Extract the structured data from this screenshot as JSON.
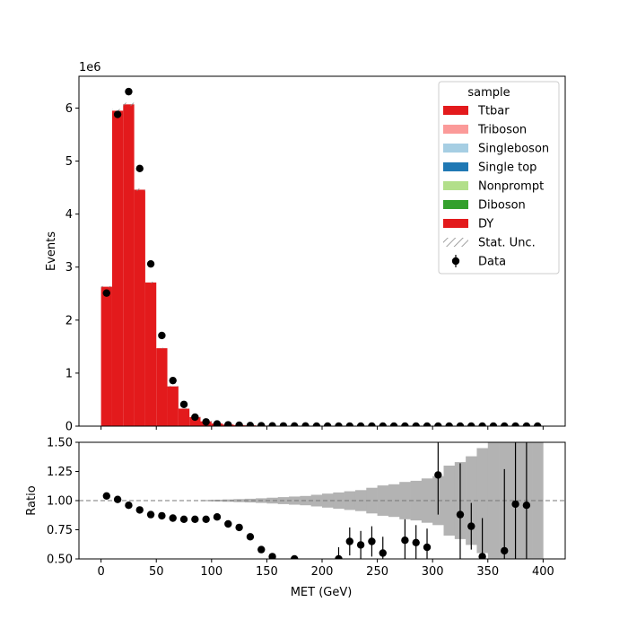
{
  "chart_data": {
    "type": "bar",
    "stacked": true,
    "xlabel": "MET (GeV)",
    "ylabel_top": "Events",
    "ylabel_bottom": "Ratio",
    "offset_label": "1e6",
    "top_ylim": [
      0,
      6.6
    ],
    "top_yticks": [
      "0",
      "1",
      "2",
      "3",
      "4",
      "5",
      "6"
    ],
    "bottom_ylim": [
      0.5,
      1.5
    ],
    "bottom_yticks": [
      "0.50",
      "0.75",
      "1.00",
      "1.25",
      "1.50"
    ],
    "xlim": [
      -20,
      420
    ],
    "xticks": [
      "0",
      "50",
      "100",
      "150",
      "200",
      "250",
      "300",
      "350",
      "400"
    ],
    "legend": {
      "title": "sample",
      "placement": "top-right",
      "entries": [
        {
          "label": "Ttbar",
          "color": "#e31a1c",
          "kind": "patch"
        },
        {
          "label": "Triboson",
          "color": "#fb9a99",
          "kind": "patch"
        },
        {
          "label": "Singleboson",
          "color": "#a6cee3",
          "kind": "patch"
        },
        {
          "label": "Single top",
          "color": "#1f78b4",
          "kind": "patch"
        },
        {
          "label": "Nonprompt",
          "color": "#b2df8a",
          "kind": "patch"
        },
        {
          "label": "Diboson",
          "color": "#33a02c",
          "kind": "patch"
        },
        {
          "label": "DY",
          "color": "#e31a1c",
          "kind": "patch"
        },
        {
          "label": "Stat. Unc.",
          "color": "#888888",
          "kind": "hatch"
        },
        {
          "label": "Data",
          "color": "#000000",
          "kind": "errorbar"
        }
      ]
    },
    "bin_edges": [
      0,
      10,
      20,
      30,
      40,
      50,
      60,
      70,
      80,
      90,
      100,
      110,
      120,
      130,
      140,
      150,
      160,
      170,
      180,
      190,
      200,
      210,
      220,
      230,
      240,
      250,
      260,
      270,
      280,
      290,
      300,
      310,
      320,
      330,
      340,
      350,
      360,
      370,
      380,
      390,
      400
    ],
    "series": [
      {
        "name": "DY",
        "color": "#e31a1c",
        "values": [
          2.63,
          5.95,
          6.07,
          4.46,
          2.71,
          1.47,
          0.75,
          0.33,
          0.17,
          0.09,
          0.05,
          0.03,
          0.02,
          0.015,
          0.01,
          0.008,
          0.006,
          0.004,
          0.003,
          0.002,
          0.002,
          0.0015,
          0.001,
          0.001,
          0.0008,
          0.0006,
          0.0005,
          0.0004,
          0.0003,
          0.0003,
          0.0002,
          0.0002,
          0.0001,
          0.0001,
          0.0001,
          0.0001,
          0.0001,
          5e-05,
          5e-05,
          5e-05
        ]
      }
    ],
    "data_points": {
      "name": "Data",
      "x": [
        5,
        15,
        25,
        35,
        45,
        55,
        65,
        75,
        85,
        95,
        105,
        115,
        125,
        135,
        145,
        155,
        165,
        175,
        185,
        195,
        205,
        215,
        225,
        235,
        245,
        255,
        265,
        275,
        285,
        295,
        305,
        315,
        325,
        335,
        345,
        355,
        365,
        375,
        385,
        395
      ],
      "y": [
        2.51,
        5.88,
        6.31,
        4.86,
        3.06,
        1.71,
        0.86,
        0.41,
        0.17,
        0.08,
        0.04,
        0.025,
        0.018,
        0.012,
        0.008,
        0.005,
        0.004,
        0.003,
        0.002,
        0.0015,
        0.001,
        0.0008,
        0.0006,
        0.0005,
        0.0004,
        0.0003,
        0.0002,
        0.0002,
        0.0001,
        0.0001,
        0.0001,
        0.0001,
        0.0001,
        0.0001,
        5e-05,
        5e-05,
        5e-05,
        5e-05,
        5e-05,
        5e-05
      ]
    },
    "ratio": {
      "x": [
        5,
        15,
        25,
        35,
        45,
        55,
        65,
        75,
        85,
        95,
        105,
        115,
        125,
        135,
        145,
        155,
        175,
        215,
        225,
        235,
        245,
        255,
        275,
        285,
        295,
        305,
        325,
        335,
        345,
        365,
        375,
        385
      ],
      "y": [
        1.04,
        1.01,
        0.96,
        0.92,
        0.88,
        0.87,
        0.85,
        0.84,
        0.84,
        0.84,
        0.86,
        0.8,
        0.77,
        0.69,
        0.58,
        0.52,
        0.5,
        0.5,
        0.65,
        0.62,
        0.65,
        0.55,
        0.66,
        0.64,
        0.6,
        1.22,
        0.88,
        0.78,
        0.52,
        0.57,
        0.97,
        0.96
      ],
      "err": [
        0,
        0,
        0,
        0,
        0,
        0,
        0,
        0,
        0,
        0,
        0,
        0,
        0,
        0,
        0,
        0,
        0,
        0.1,
        0.12,
        0.12,
        0.13,
        0.14,
        0.18,
        0.15,
        0.16,
        0.34,
        0.44,
        0.2,
        0.33,
        0.7,
        0.6,
        0.55
      ],
      "unc_band": [
        0,
        0,
        0,
        0,
        0,
        0,
        0,
        0,
        0,
        0.005,
        0.008,
        0.01,
        0.013,
        0.016,
        0.02,
        0.025,
        0.03,
        0.035,
        0.04,
        0.05,
        0.06,
        0.07,
        0.08,
        0.09,
        0.11,
        0.13,
        0.14,
        0.16,
        0.17,
        0.19,
        0.21,
        0.3,
        0.33,
        0.38,
        0.45,
        0.5,
        0.5,
        0.55,
        0.55,
        0.6
      ],
      "reference": 1.0
    }
  }
}
